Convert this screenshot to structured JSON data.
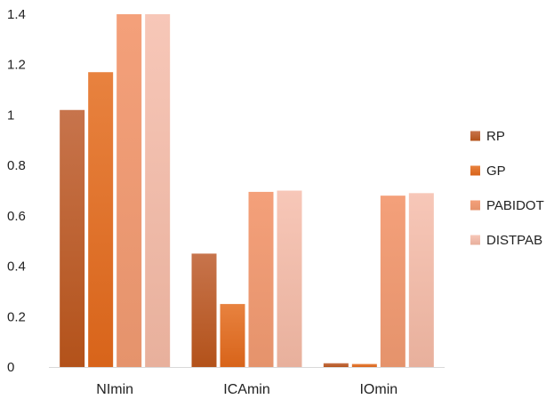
{
  "chart_data": {
    "type": "bar",
    "categories": [
      "NImin",
      "ICAmin",
      "IOmin"
    ],
    "series": [
      {
        "name": "RP",
        "values": [
          1.02,
          0.45,
          0.015
        ],
        "color_top": "#c7744c",
        "color_bottom": "#b3521a"
      },
      {
        "name": "GP",
        "values": [
          1.17,
          0.25,
          0.012
        ],
        "color_top": "#e8823f",
        "color_bottom": "#d8641a"
      },
      {
        "name": "PABIDOT",
        "values": [
          1.4,
          0.695,
          0.68
        ],
        "color_top": "#f4a07a",
        "color_bottom": "#e5936c"
      },
      {
        "name": "DISTPAB",
        "values": [
          1.4,
          0.7,
          0.69
        ],
        "color_top": "#f7c7b8",
        "color_bottom": "#e8b09c"
      }
    ],
    "yticks": [
      "0",
      "0.2",
      "0.4",
      "0.6",
      "0.8",
      "1",
      "1.2",
      "1.4"
    ],
    "ylim": [
      0,
      1.4
    ],
    "grid": false,
    "legend": "right",
    "title": "",
    "xlabel": "",
    "ylabel": ""
  }
}
